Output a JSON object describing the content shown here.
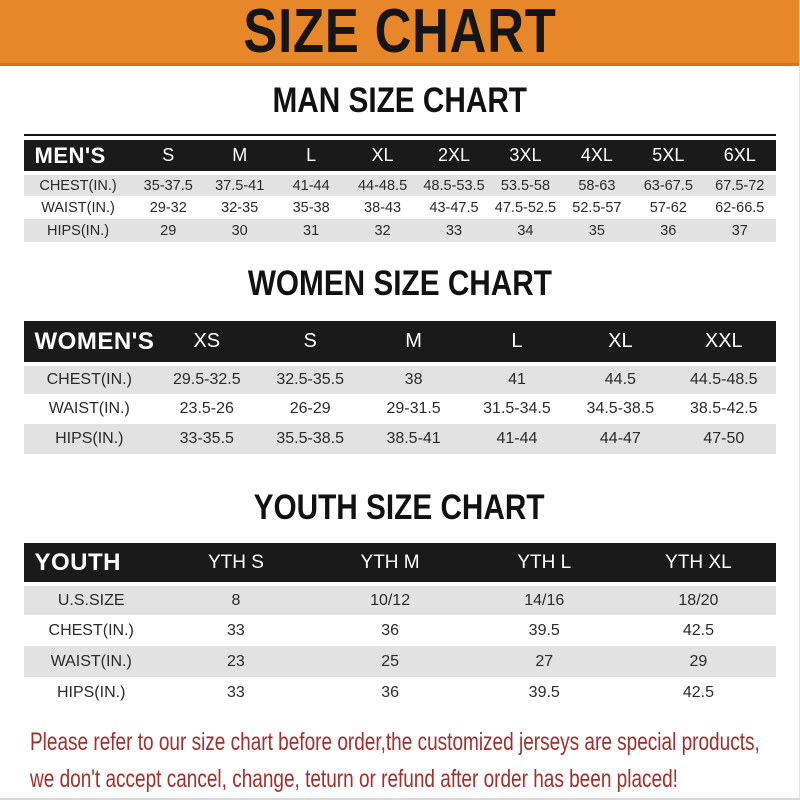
{
  "banner": {
    "title": "SIZE CHART"
  },
  "colors": {
    "banner_bg": "#e8862a",
    "banner_border": "#d4741f",
    "header_bar": "#1a1a1a",
    "row_stripe": "#e2e2e2",
    "footer_red": "#a32e2e"
  },
  "sections": [
    {
      "title": "MAN SIZE CHART",
      "header_label": "MEN'S",
      "columns": [
        "S",
        "M",
        "L",
        "XL",
        "2XL",
        "3XL",
        "4XL",
        "5XL",
        "6XL"
      ],
      "rows": [
        {
          "label": "CHEST(IN.)",
          "values": [
            "35-37.5",
            "37.5-41",
            "41-44",
            "44-48.5",
            "48.5-53.5",
            "53.5-58",
            "58-63",
            "63-67.5",
            "67.5-72"
          ]
        },
        {
          "label": "WAIST(IN.)",
          "values": [
            "29-32",
            "32-35",
            "35-38",
            "38-43",
            "43-47.5",
            "47.5-52.5",
            "52.5-57",
            "57-62",
            "62-66.5"
          ]
        },
        {
          "label": "HIPS(IN.)",
          "values": [
            "29",
            "30",
            "31",
            "32",
            "33",
            "34",
            "35",
            "36",
            "37"
          ]
        }
      ]
    },
    {
      "title": "WOMEN SIZE CHART",
      "header_label": "WOMEN'S",
      "columns": [
        "XS",
        "S",
        "M",
        "L",
        "XL",
        "XXL"
      ],
      "rows": [
        {
          "label": "CHEST(IN.)",
          "values": [
            "29.5-32.5",
            "32.5-35.5",
            "38",
            "41",
            "44.5",
            "44.5-48.5"
          ]
        },
        {
          "label": "WAIST(IN.)",
          "values": [
            "23.5-26",
            "26-29",
            "29-31.5",
            "31.5-34.5",
            "34.5-38.5",
            "38.5-42.5"
          ]
        },
        {
          "label": "HIPS(IN.)",
          "values": [
            "33-35.5",
            "35.5-38.5",
            "38.5-41",
            "41-44",
            "44-47",
            "47-50"
          ]
        }
      ]
    },
    {
      "title": "YOUTH SIZE CHART",
      "header_label": "YOUTH",
      "columns": [
        "YTH S",
        "YTH M",
        "YTH L",
        "YTH XL"
      ],
      "rows": [
        {
          "label": "U.S.SIZE",
          "values": [
            "8",
            "10/12",
            "14/16",
            "18/20"
          ]
        },
        {
          "label": "CHEST(IN.)",
          "values": [
            "33",
            "36",
            "39.5",
            "42.5"
          ]
        },
        {
          "label": "WAIST(IN.)",
          "values": [
            "23",
            "25",
            "27",
            "29"
          ]
        },
        {
          "label": "HIPS(IN.)",
          "values": [
            "33",
            "36",
            "39.5",
            "42.5"
          ]
        }
      ]
    }
  ],
  "footer": {
    "line1": "Please refer to our size chart before order,the customized jerseys are special products,",
    "line2": "we don't accept cancel, change, teturn or refund after order has been placed!"
  }
}
